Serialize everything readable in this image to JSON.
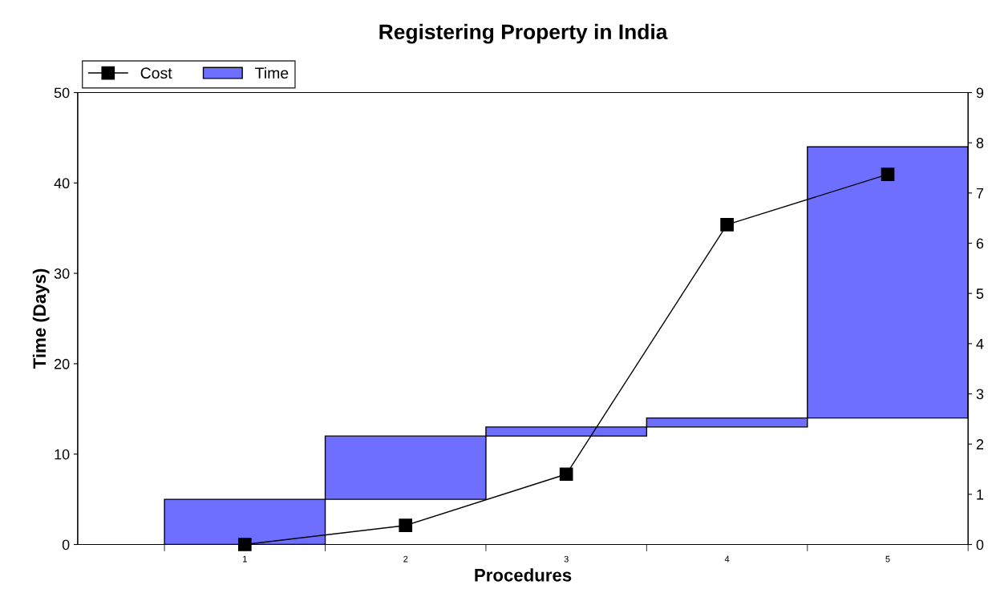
{
  "chart_data": {
    "type": "bar",
    "title": "Registering Property in India",
    "xlabel": "Procedures",
    "ylabel": "Time (Days)",
    "categories": [
      "1",
      "2",
      "3",
      "4",
      "5"
    ],
    "series": [
      {
        "name": "Time",
        "color": "#6f6fff",
        "base": [
          0,
          5,
          12,
          13,
          14
        ],
        "values": [
          5,
          7,
          1,
          1,
          30
        ]
      },
      {
        "name": "Cost",
        "type": "line",
        "axis": "y2",
        "color": "#000000",
        "marker": "square",
        "line_style": "solid",
        "values": [
          0,
          0.38,
          1.4,
          6.37,
          7.37
        ]
      }
    ],
    "ylim": [
      0,
      50
    ],
    "yticks": [
      0,
      10,
      20,
      30,
      40,
      50
    ],
    "y2lim": [
      0,
      9
    ],
    "y2ticks": [
      0,
      1,
      2,
      3,
      4,
      5,
      6,
      7,
      8,
      9
    ],
    "grid": false,
    "legend": "top left"
  }
}
